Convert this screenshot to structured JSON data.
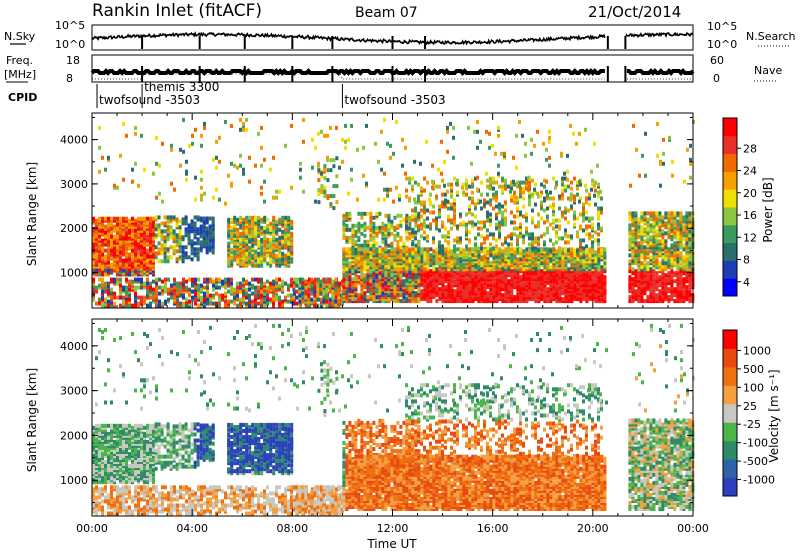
{
  "header": {
    "station": "Rankin Inlet (fitACF)",
    "beam": "Beam 07",
    "date": "21/Oct/2014"
  },
  "noise_panel": {
    "left_label_top": "N.Sky",
    "left_ticks": [
      "10^5",
      "10^0"
    ],
    "right_ticks": [
      "10^5",
      "10^0"
    ],
    "right_label": "N.Search"
  },
  "freq_panel": {
    "left_label_line1": "Freq.",
    "left_label_line2": "[MHz]",
    "left_ticks": [
      "18",
      "8"
    ],
    "right_ticks": [
      "60",
      "0"
    ],
    "right_label": "Nave"
  },
  "cpid": {
    "label": "CPID",
    "segments": [
      {
        "start_hour": 0.2,
        "name": "twofsound -3503"
      },
      {
        "start_hour": 2.0,
        "name": "themis 3300"
      },
      {
        "start_hour": 10.0,
        "name": "twofsound -3503"
      }
    ]
  },
  "chart_data": [
    {
      "type": "heatmap",
      "title": "",
      "ylabel": "Slant Range [km]",
      "xlabel": "",
      "ylim": [
        200,
        4600
      ],
      "y_ticks": [
        "1000",
        "2000",
        "3000",
        "4000"
      ],
      "x_range_hours": [
        0,
        24
      ],
      "colorbar": {
        "label": "Power [dB]",
        "ticks": [
          "28",
          "24",
          "20",
          "16",
          "12",
          "8",
          "4"
        ],
        "colors": [
          "#0000ff",
          "#1e3fb4",
          "#2b6e6e",
          "#3c9a5a",
          "#8cc63f",
          "#f0e000",
          "#f4a000",
          "#f06a00",
          "#e8302a",
          "#ff0000"
        ]
      }
    },
    {
      "type": "heatmap",
      "title": "",
      "ylabel": "Slant Range [km]",
      "xlabel": "Time UT",
      "ylim": [
        200,
        4600
      ],
      "y_ticks": [
        "1000",
        "2000",
        "3000",
        "4000"
      ],
      "x_range_hours": [
        0,
        24
      ],
      "x_ticks": [
        "00:00",
        "04:00",
        "08:00",
        "12:00",
        "16:00",
        "20:00",
        "00:00"
      ],
      "colorbar": {
        "label": "Velocity [m s⁻¹]",
        "ticks": [
          "1000",
          "500",
          "100",
          "25",
          "-25",
          "-100",
          "-500",
          "-1000"
        ],
        "colors": [
          "#2b3fbf",
          "#2e62a8",
          "#2f8a6a",
          "#4cb54a",
          "#c8c8c0",
          "#f4a040",
          "#f07010",
          "#e84a10",
          "#ff0000"
        ]
      }
    }
  ],
  "data_gaps_hours": [
    [
      20.5,
      21.3
    ]
  ]
}
